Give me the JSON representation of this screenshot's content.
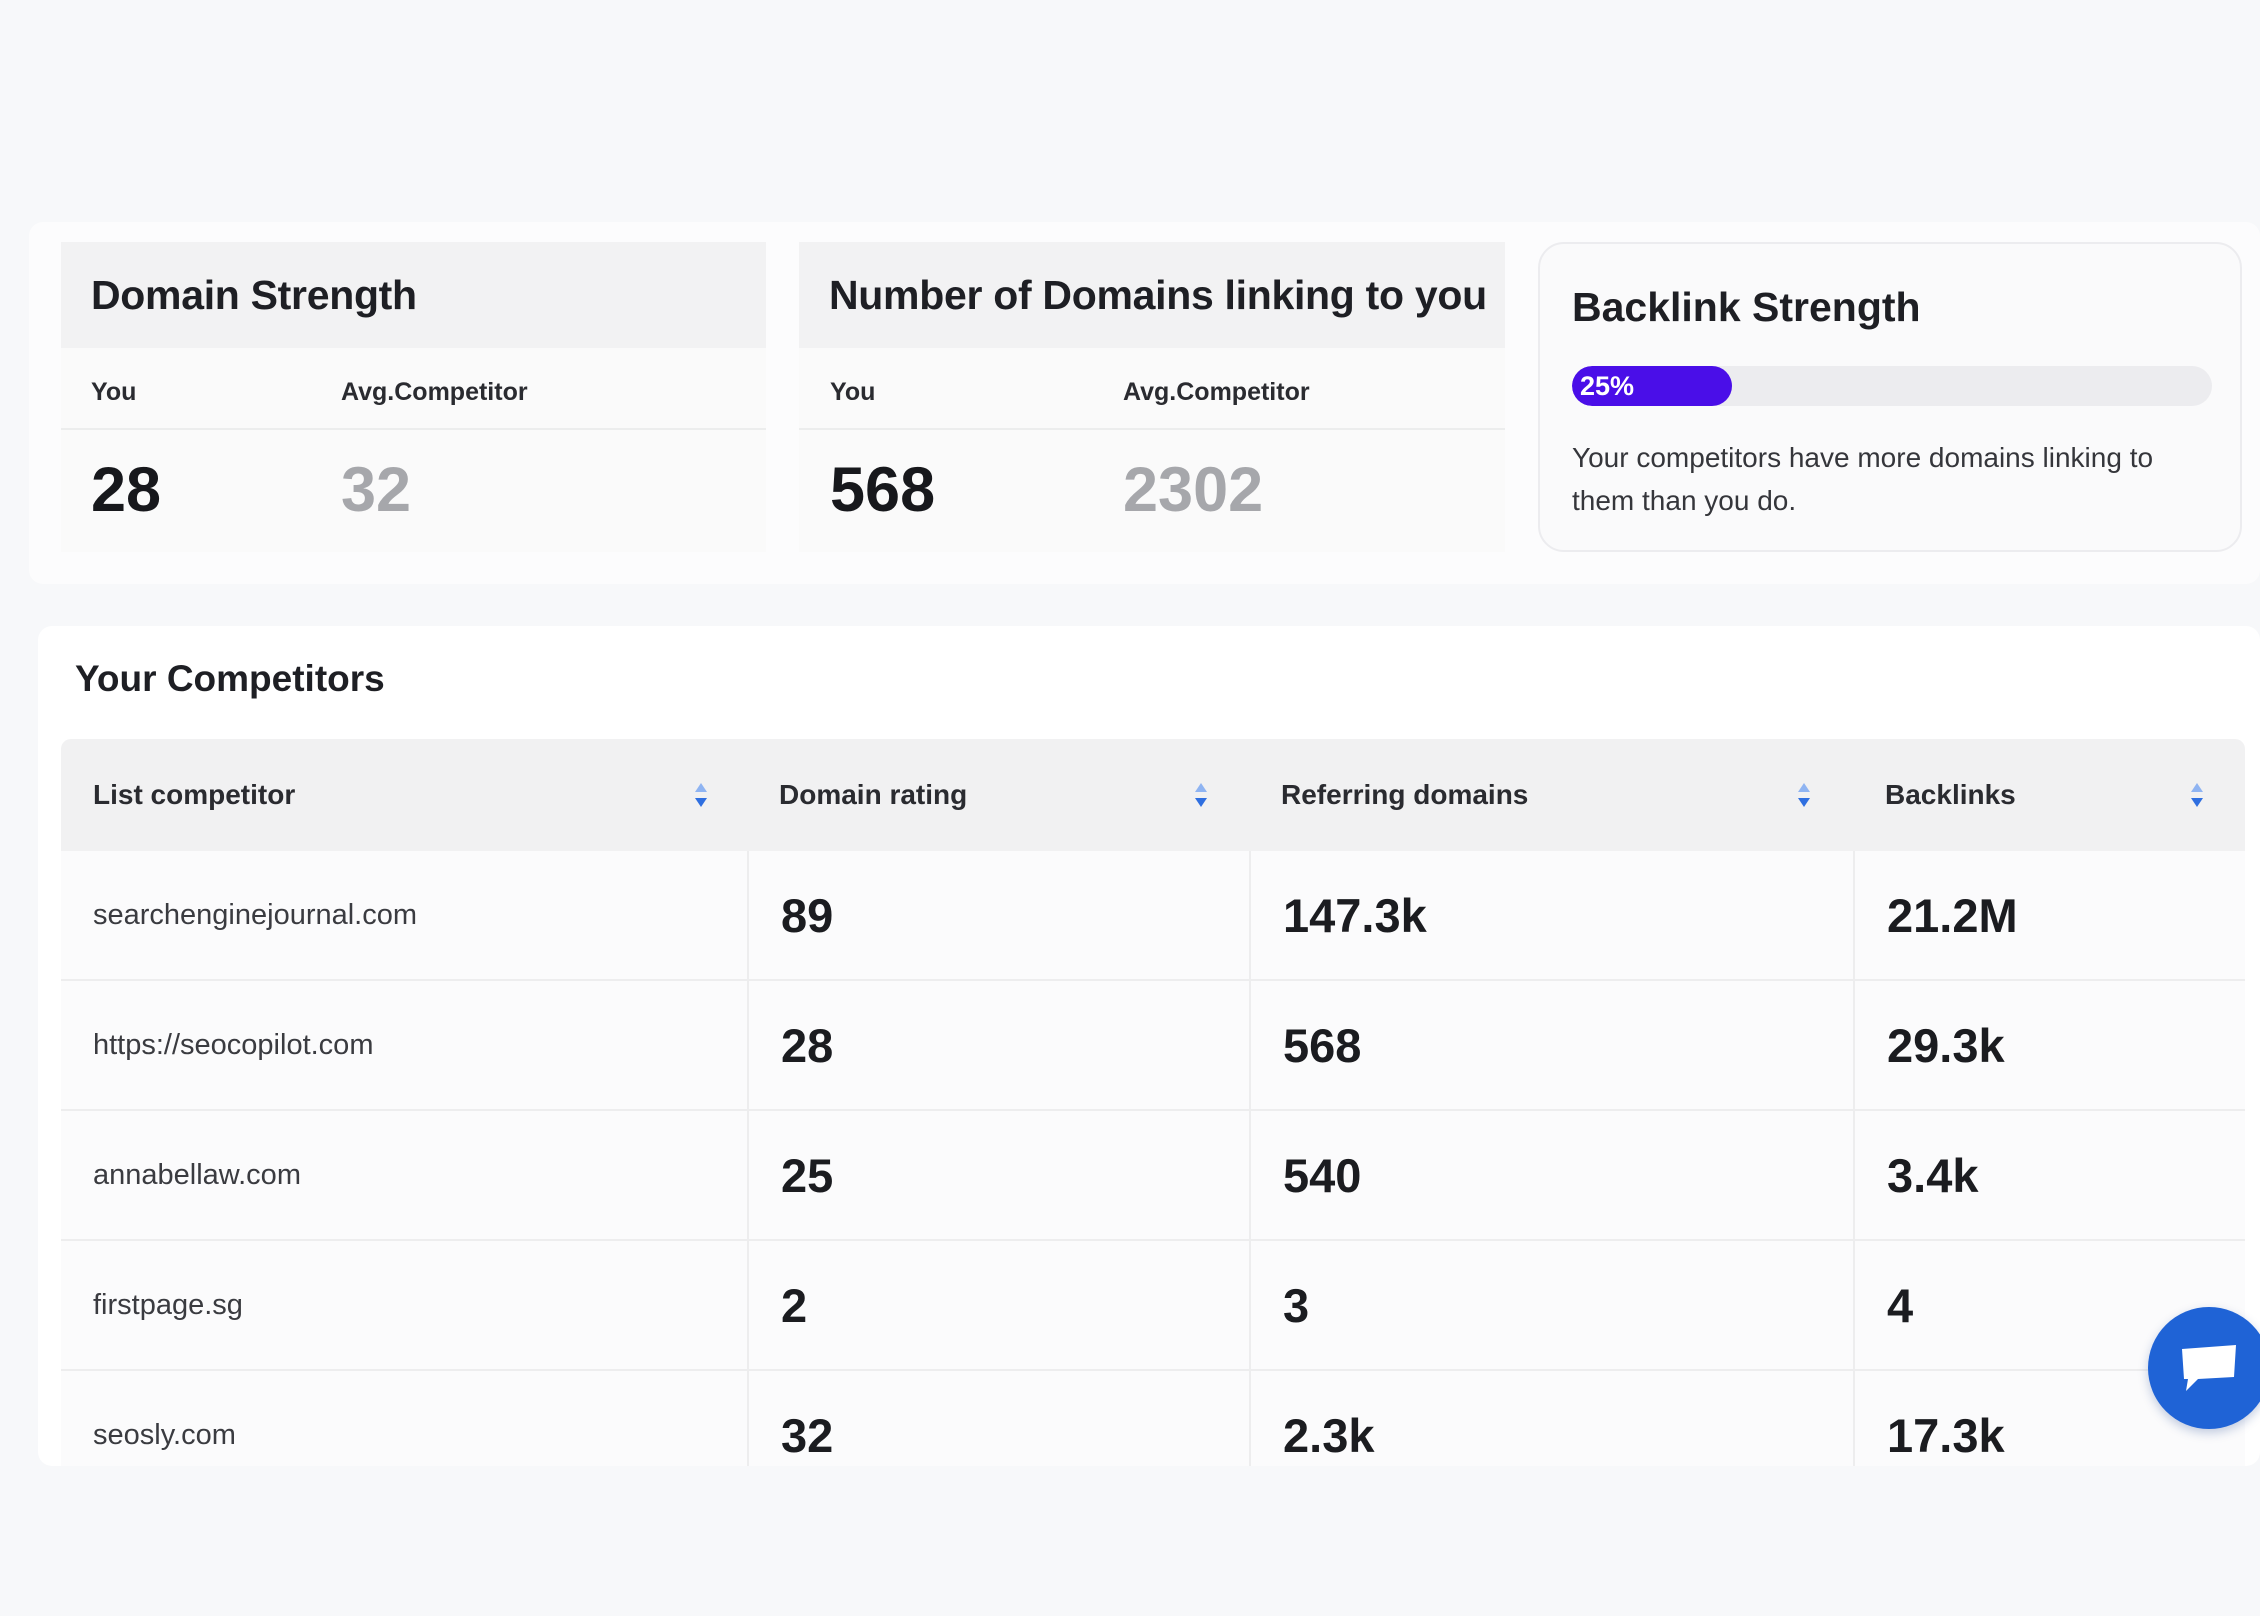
{
  "domain_strength": {
    "title": "Domain Strength",
    "you_label": "You",
    "avg_label": "Avg.Competitor",
    "you_value": "28",
    "avg_value": "32"
  },
  "linking_domains": {
    "title": "Number of Domains linking to you",
    "you_label": "You",
    "avg_label": "Avg.Competitor",
    "you_value": "568",
    "avg_value": "2302"
  },
  "backlink_strength": {
    "title": "Backlink Strength",
    "progress_label": "25%",
    "progress_fraction": 0.25,
    "note": "Your competitors have more domains linking to them than you do."
  },
  "competitors": {
    "title": "Your Competitors",
    "columns": [
      "List competitor",
      "Domain rating",
      "Referring domains",
      "Backlinks"
    ],
    "rows": [
      {
        "name": "searchenginejournal.com",
        "domain_rating": "89",
        "referring_domains": "147.3k",
        "backlinks": "21.2M"
      },
      {
        "name": "https://seocopilot.com",
        "domain_rating": "28",
        "referring_domains": "568",
        "backlinks": "29.3k"
      },
      {
        "name": "annabellaw.com",
        "domain_rating": "25",
        "referring_domains": "540",
        "backlinks": "3.4k"
      },
      {
        "name": "firstpage.sg",
        "domain_rating": "2",
        "referring_domains": "3",
        "backlinks": "4"
      },
      {
        "name": "seosly.com",
        "domain_rating": "32",
        "referring_domains": "2.3k",
        "backlinks": "17.3k"
      }
    ]
  },
  "colors": {
    "progress": "#4a0ee8",
    "sort_up": "#8fb4f2",
    "sort_down": "#2f6fe0",
    "chat": "#1f63d6"
  },
  "icons": {
    "sort": "sort-arrows-icon",
    "chat": "chat-bubble-icon"
  }
}
